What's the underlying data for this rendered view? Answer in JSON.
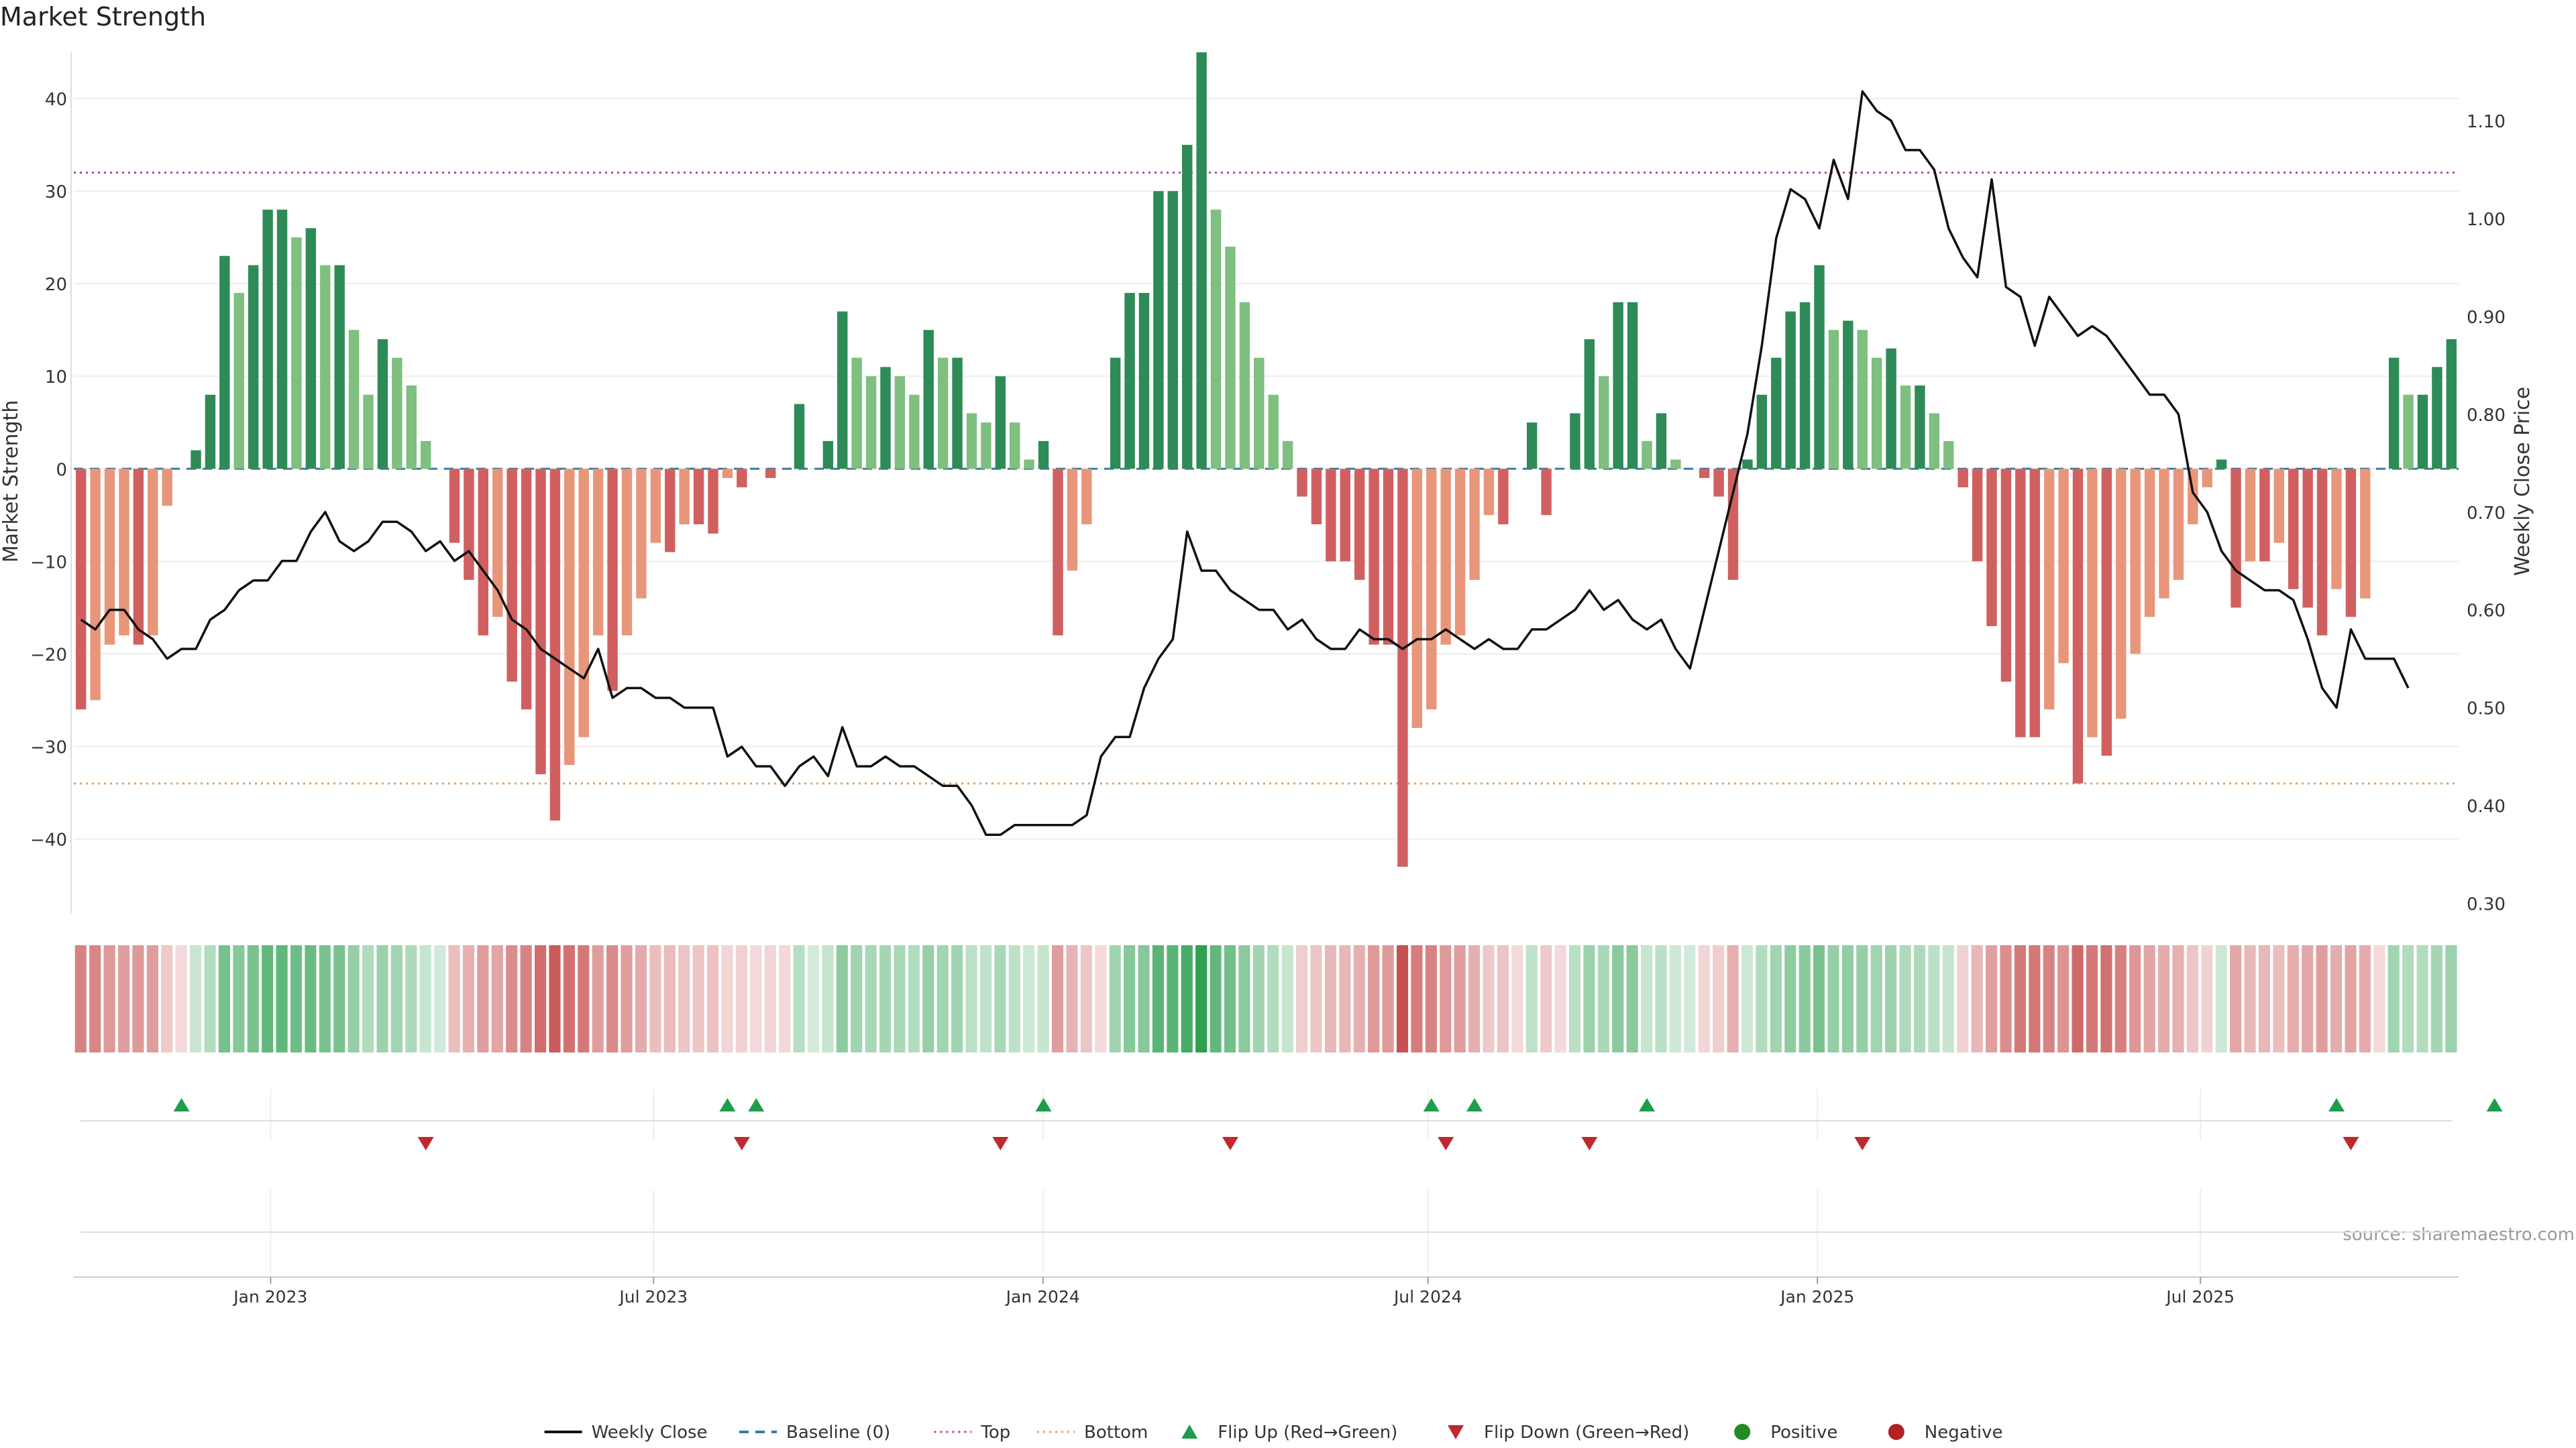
{
  "chart_data": {
    "type": "bar+line",
    "title": "Market Strength",
    "ylabel_left": "Market Strength",
    "ylabel_right": "Weekly Close Price",
    "source": "source: sharemaestro.com",
    "ylim_left": [
      -48,
      45
    ],
    "ylim_right": [
      0.29,
      1.17
    ],
    "yticks_left": [
      "40",
      "30",
      "20",
      "10",
      "0",
      "−10",
      "−20",
      "−30",
      "−40"
    ],
    "yticks_left_values": [
      40,
      30,
      20,
      10,
      0,
      -10,
      -20,
      -30,
      -40
    ],
    "yticks_right": [
      "1.10",
      "1.00",
      "0.90",
      "0.80",
      "0.70",
      "0.60",
      "0.50",
      "0.40",
      "0.30"
    ],
    "yticks_right_values": [
      1.1,
      1.0,
      0.9,
      0.8,
      0.7,
      0.6,
      0.5,
      0.4,
      0.3
    ],
    "top_line": 32,
    "bottom_line": -34,
    "x_start": "2022-09-30",
    "x_end": "2025-10-31",
    "xticks": [
      {
        "label": "Jan 2023",
        "date": "2023-01-01"
      },
      {
        "label": "Jul 2023",
        "date": "2023-07-01"
      },
      {
        "label": "Jan 2024",
        "date": "2024-01-01"
      },
      {
        "label": "Jul 2024",
        "date": "2024-07-01"
      },
      {
        "label": "Jan 2025",
        "date": "2025-01-01"
      },
      {
        "label": "Jul 2025",
        "date": "2025-07-01"
      }
    ],
    "series": [
      {
        "name": "Market Strength",
        "values": [
          -26,
          -25,
          -19,
          -18,
          -19,
          -18,
          -4,
          0,
          2,
          8,
          23,
          19,
          22,
          28,
          28,
          25,
          26,
          22,
          22,
          15,
          8,
          14,
          12,
          9,
          3,
          0,
          -8,
          -12,
          -18,
          -16,
          -23,
          -26,
          -33,
          -38,
          -32,
          -29,
          -18,
          -24,
          -18,
          -14,
          -8,
          -9,
          -6,
          -6,
          -7,
          -1,
          -2,
          0,
          -1,
          0,
          7,
          0,
          3,
          17,
          12,
          10,
          11,
          10,
          8,
          15,
          12,
          12,
          6,
          5,
          10,
          5,
          1,
          3,
          -18,
          -11,
          -6,
          0,
          12,
          19,
          19,
          30,
          30,
          35,
          45,
          28,
          24,
          18,
          12,
          8,
          3,
          -3,
          -6,
          -10,
          -10,
          -12,
          -19,
          -19,
          -43,
          -28,
          -26,
          -19,
          -18,
          -12,
          -5,
          -6,
          0,
          5,
          -5,
          0,
          6,
          14,
          10,
          18,
          18,
          3,
          6,
          1,
          0,
          -1,
          -3,
          -12,
          1,
          8,
          12,
          17,
          18,
          22,
          15,
          16,
          15,
          12,
          13,
          9,
          9,
          6,
          3,
          -2,
          -10,
          -17,
          -23,
          -29,
          -29,
          -26,
          -21,
          -34,
          -29,
          -31,
          -27,
          -20,
          -16,
          -14,
          -12,
          -6,
          -2,
          1,
          -15,
          -10,
          -10,
          -8,
          -13,
          -15,
          -18,
          -13,
          -16,
          -14,
          0,
          12,
          8,
          8,
          11,
          14
        ]
      },
      {
        "name": "Weekly Close",
        "values": [
          0.59,
          0.58,
          0.6,
          0.6,
          0.58,
          0.57,
          0.55,
          0.56,
          0.56,
          0.59,
          0.6,
          0.62,
          0.63,
          0.63,
          0.65,
          0.65,
          0.68,
          0.7,
          0.67,
          0.66,
          0.67,
          0.69,
          0.69,
          0.68,
          0.66,
          0.67,
          0.65,
          0.66,
          0.64,
          0.62,
          0.59,
          0.58,
          0.56,
          0.55,
          0.54,
          0.53,
          0.56,
          0.51,
          0.52,
          0.52,
          0.51,
          0.51,
          0.5,
          0.5,
          0.5,
          0.45,
          0.46,
          0.44,
          0.44,
          0.42,
          0.44,
          0.45,
          0.43,
          0.48,
          0.44,
          0.44,
          0.45,
          0.44,
          0.44,
          0.43,
          0.42,
          0.42,
          0.4,
          0.37,
          0.37,
          0.38,
          0.38,
          0.38,
          0.38,
          0.38,
          0.39,
          0.45,
          0.47,
          0.47,
          0.52,
          0.55,
          0.57,
          0.68,
          0.64,
          0.64,
          0.62,
          0.61,
          0.6,
          0.6,
          0.58,
          0.59,
          0.57,
          0.56,
          0.56,
          0.58,
          0.57,
          0.57,
          0.56,
          0.57,
          0.57,
          0.58,
          0.57,
          0.56,
          0.57,
          0.56,
          0.56,
          0.58,
          0.58,
          0.59,
          0.6,
          0.62,
          0.6,
          0.61,
          0.59,
          0.58,
          0.59,
          0.56,
          0.54,
          0.6,
          0.66,
          0.72,
          0.78,
          0.87,
          0.98,
          1.03,
          1.02,
          0.99,
          1.06,
          1.02,
          1.13,
          1.11,
          1.1,
          1.07,
          1.07,
          1.05,
          0.99,
          0.96,
          0.94,
          1.04,
          0.93,
          0.92,
          0.87,
          0.92,
          0.9,
          0.88,
          0.89,
          0.88,
          0.86,
          0.84,
          0.82,
          0.82,
          0.8,
          0.72,
          0.7,
          0.66,
          0.64,
          0.63,
          0.62,
          0.62,
          0.61,
          0.57,
          0.52,
          0.5,
          0.58,
          0.55,
          0.55,
          0.55,
          0.52
        ]
      }
    ],
    "flip_up_weeks": [
      7,
      45,
      47,
      67,
      94,
      97,
      109,
      157,
      168
    ],
    "flip_down_weeks": [
      24,
      46,
      64,
      80,
      95,
      105,
      124,
      158
    ],
    "legend": [
      {
        "label": "Weekly Close",
        "kind": "line",
        "color": "#111111"
      },
      {
        "label": "Baseline (0)",
        "kind": "dash",
        "color": "#3a7ca5"
      },
      {
        "label": "Top",
        "kind": "dot",
        "color": "#b04aa0"
      },
      {
        "label": "Bottom",
        "kind": "dot",
        "color": "#e3a25c"
      },
      {
        "label": "Flip Up (Red→Green)",
        "kind": "tri-up",
        "color": "#1e9e4a"
      },
      {
        "label": "Flip Down (Green→Red)",
        "kind": "tri-down",
        "color": "#c0282d"
      },
      {
        "label": "Positive",
        "kind": "circle",
        "color": "#228b22"
      },
      {
        "label": "Negative",
        "kind": "circle",
        "color": "#b22222"
      }
    ],
    "legend_position": "bottom-center",
    "colors": {
      "pos_strong": "#2e8b57",
      "pos_weak": "#7fbf7f",
      "neg_strong": "#d06060",
      "neg_weak": "#e8967a",
      "baseline": "#3a7ca5",
      "top": "#b04aa0",
      "bottom": "#e3a25c",
      "price": "#111111"
    }
  }
}
